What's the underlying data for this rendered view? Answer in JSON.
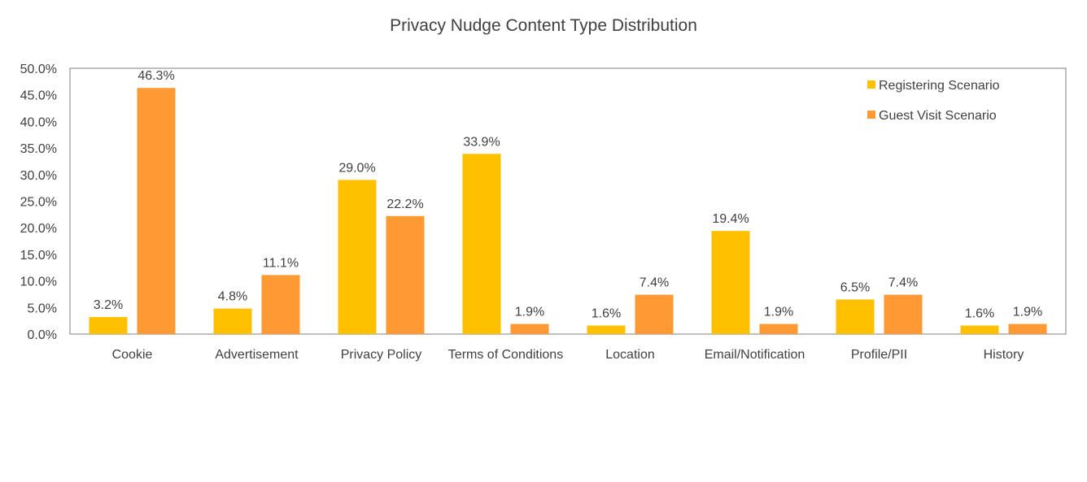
{
  "chart_data": {
    "type": "bar",
    "title": "Privacy Nudge Content Type Distribution",
    "xlabel": "",
    "ylabel": "",
    "categories": [
      "Cookie",
      "Advertisement",
      "Privacy Policy",
      "Terms of Conditions",
      "Location",
      "Email/Notification",
      "Profile/PII",
      "History"
    ],
    "series": [
      {
        "name": "Registering Scenario",
        "color": "#FFC000",
        "values": [
          3.2,
          4.8,
          29.0,
          33.9,
          1.6,
          19.4,
          6.5,
          1.6
        ],
        "labels": [
          "3.2%",
          "4.8%",
          "29.0%",
          "33.9%",
          "1.6%",
          "19.4%",
          "6.5%",
          "1.6%"
        ]
      },
      {
        "name": "Guest Visit Scenario",
        "color": "#FF9933",
        "values": [
          46.3,
          11.1,
          22.2,
          1.9,
          7.4,
          1.9,
          7.4,
          1.9
        ],
        "labels": [
          "46.3%",
          "11.1%",
          "22.2%",
          "1.9%",
          "7.4%",
          "1.9%",
          "7.4%",
          "1.9%"
        ]
      }
    ],
    "ylim": [
      0,
      50
    ],
    "yticks": [
      0,
      5,
      10,
      15,
      20,
      25,
      30,
      35,
      40,
      45,
      50
    ],
    "ytick_labels": [
      "0.0%",
      "5.0%",
      "10.0%",
      "15.0%",
      "20.0%",
      "25.0%",
      "30.0%",
      "35.0%",
      "40.0%",
      "45.0%",
      "50.0%"
    ],
    "grid": false,
    "legend_position": "top-right"
  }
}
